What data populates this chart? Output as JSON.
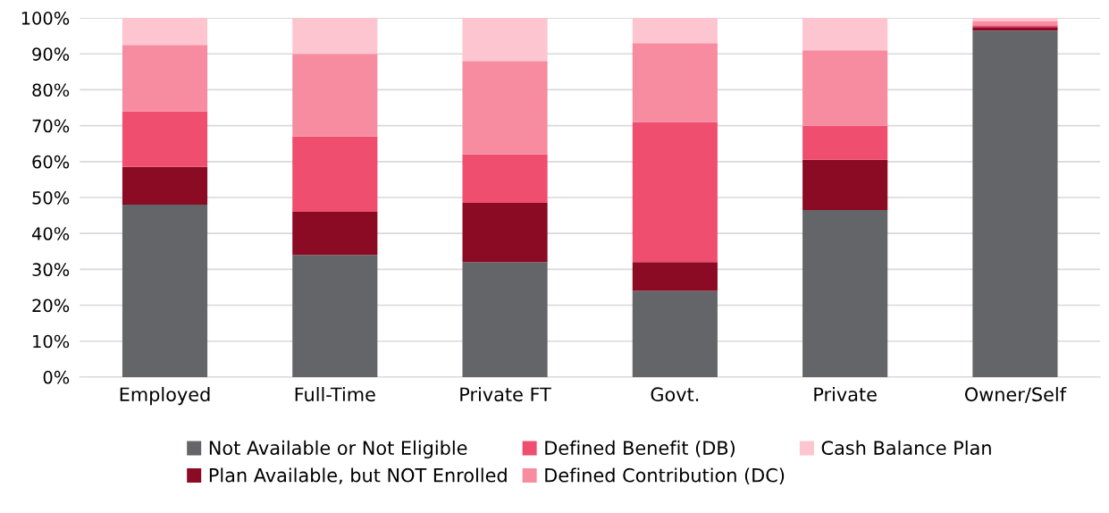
{
  "chart_data": {
    "type": "bar",
    "stacked": true,
    "categories": [
      "Employed",
      "Full-Time",
      "Private FT",
      "Govt.",
      "Private",
      "Owner/Self"
    ],
    "series": [
      {
        "name": "Not Available or Not Eligible",
        "color": "#636569",
        "values": [
          48,
          34,
          32,
          24,
          46.5,
          96.5
        ]
      },
      {
        "name": "Plan Available, but NOT Enrolled",
        "color": "#8b0a24",
        "values": [
          10.5,
          12,
          16.5,
          8,
          14,
          1
        ]
      },
      {
        "name": "Defined Benefit (DB)",
        "color": "#f04e6e",
        "values": [
          15.5,
          21,
          13.5,
          39,
          9.5,
          0.5
        ]
      },
      {
        "name": "Defined Contribution (DC)",
        "color": "#f78ca0",
        "values": [
          18.5,
          23,
          26,
          22,
          21,
          1
        ]
      },
      {
        "name": "Cash Balance Plan",
        "color": "#fcc5d0",
        "values": [
          7.5,
          10,
          12,
          7,
          9,
          1
        ]
      }
    ],
    "ylim": [
      0,
      100
    ],
    "yticks": [
      {
        "value": 0,
        "label": "0%"
      },
      {
        "value": 10,
        "label": "10%"
      },
      {
        "value": 20,
        "label": "20%"
      },
      {
        "value": 30,
        "label": "30%"
      },
      {
        "value": 40,
        "label": "40%"
      },
      {
        "value": 50,
        "label": "50%"
      },
      {
        "value": 60,
        "label": "60%"
      },
      {
        "value": 70,
        "label": "70%"
      },
      {
        "value": 80,
        "label": "80%"
      },
      {
        "value": 90,
        "label": "90%"
      },
      {
        "value": 100,
        "label": "100%"
      }
    ],
    "grid": "y",
    "legend": "bottom"
  }
}
